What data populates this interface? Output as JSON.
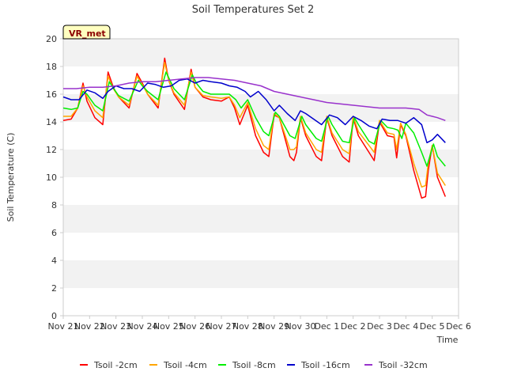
{
  "chart_data": {
    "type": "line",
    "title": "Soil Temperatures Set 2",
    "xlabel": "Time",
    "ylabel": "Soil Temperature (C)",
    "ylim": [
      0,
      20
    ],
    "yticks": [
      0,
      2,
      4,
      6,
      8,
      10,
      12,
      14,
      16,
      18,
      20
    ],
    "xlim": [
      0,
      15
    ],
    "xticks": [
      0,
      1,
      2,
      3,
      4,
      5,
      6,
      7,
      8,
      9,
      10,
      11,
      12,
      13,
      14,
      15
    ],
    "xtick_labels": [
      "Nov 21",
      "Nov 22",
      "Nov 23",
      "Nov 24",
      "Nov 25",
      "Nov 26",
      "Nov 27",
      "Nov 28",
      "Nov 29",
      "Nov 30",
      "Dec 1",
      "Dec 2",
      "Dec 3",
      "Dec 4",
      "Dec 5",
      "Dec 6"
    ],
    "station_badge": "VR_met",
    "legend_position": "bottom",
    "series": [
      {
        "name": "Tsoil -2cm",
        "color": "#ff0000",
        "x": [
          0,
          0.3,
          0.55,
          0.75,
          0.9,
          1.2,
          1.5,
          1.7,
          1.9,
          2.1,
          2.5,
          2.8,
          3.0,
          3.2,
          3.6,
          3.85,
          4.0,
          4.2,
          4.6,
          4.85,
          5.0,
          5.3,
          5.6,
          6.0,
          6.3,
          6.5,
          6.7,
          7.0,
          7.3,
          7.6,
          7.8,
          8.0,
          8.2,
          8.6,
          8.75,
          8.85,
          9.0,
          9.2,
          9.6,
          9.8,
          10.0,
          10.2,
          10.6,
          10.85,
          11.0,
          11.2,
          11.6,
          11.8,
          12.0,
          12.3,
          12.55,
          12.65,
          12.8,
          13.0,
          13.3,
          13.6,
          13.75,
          13.85,
          14.0,
          14.2,
          14.5
        ],
        "values": [
          14.1,
          14.2,
          15.0,
          16.8,
          15.5,
          14.3,
          13.8,
          17.6,
          16.5,
          15.8,
          15.0,
          17.5,
          16.8,
          16.0,
          15.0,
          18.6,
          17.0,
          16.0,
          14.9,
          17.8,
          16.5,
          15.8,
          15.6,
          15.5,
          15.8,
          15.0,
          13.8,
          15.2,
          13.0,
          11.8,
          11.5,
          14.5,
          14.3,
          11.5,
          11.2,
          11.8,
          14.3,
          13.0,
          11.5,
          11.2,
          14.3,
          13.0,
          11.5,
          11.1,
          14.3,
          13.0,
          11.8,
          11.2,
          14.0,
          13.0,
          12.9,
          11.4,
          13.8,
          13.0,
          10.5,
          8.5,
          8.6,
          10.5,
          12.3,
          10.0,
          8.6
        ]
      },
      {
        "name": "Tsoil -4cm",
        "color": "#ffa500",
        "x": [
          0,
          0.3,
          0.55,
          0.75,
          0.9,
          1.2,
          1.5,
          1.7,
          1.9,
          2.1,
          2.5,
          2.8,
          3.0,
          3.2,
          3.6,
          3.85,
          4.0,
          4.2,
          4.6,
          4.85,
          5.0,
          5.3,
          5.6,
          6.0,
          6.3,
          6.5,
          6.7,
          7.0,
          7.3,
          7.6,
          7.8,
          8.0,
          8.2,
          8.6,
          8.75,
          8.85,
          9.0,
          9.2,
          9.6,
          9.8,
          10.0,
          10.2,
          10.6,
          10.85,
          11.0,
          11.2,
          11.6,
          11.8,
          12.0,
          12.3,
          12.55,
          12.65,
          12.8,
          13.0,
          13.3,
          13.6,
          13.75,
          13.85,
          14.0,
          14.2,
          14.5
        ],
        "values": [
          14.4,
          14.4,
          15.0,
          16.6,
          15.8,
          14.8,
          14.3,
          17.3,
          16.4,
          15.8,
          15.2,
          17.3,
          16.7,
          16.0,
          15.2,
          18.3,
          17.0,
          16.1,
          15.2,
          17.6,
          16.5,
          15.9,
          15.8,
          15.7,
          15.8,
          15.2,
          14.3,
          15.4,
          13.5,
          12.3,
          12.0,
          14.6,
          14.3,
          12.0,
          12.0,
          12.2,
          14.4,
          13.2,
          12.0,
          11.8,
          14.4,
          13.2,
          12.0,
          11.7,
          14.4,
          13.3,
          12.3,
          11.8,
          14.1,
          13.2,
          13.1,
          12.0,
          13.9,
          13.1,
          11.0,
          9.3,
          9.4,
          11.0,
          12.3,
          10.3,
          9.4
        ]
      },
      {
        "name": "Tsoil -8cm",
        "color": "#00ee00",
        "x": [
          0,
          0.3,
          0.55,
          0.75,
          0.9,
          1.2,
          1.5,
          1.75,
          1.95,
          2.1,
          2.5,
          2.85,
          3.0,
          3.2,
          3.6,
          3.9,
          4.05,
          4.2,
          4.6,
          4.9,
          5.05,
          5.3,
          5.6,
          6.0,
          6.3,
          6.55,
          6.75,
          7.0,
          7.3,
          7.6,
          7.8,
          8.05,
          8.2,
          8.6,
          8.8,
          9.05,
          9.2,
          9.6,
          9.8,
          10.05,
          10.2,
          10.6,
          10.85,
          11.05,
          11.2,
          11.6,
          11.8,
          12.05,
          12.3,
          12.55,
          12.7,
          12.85,
          13.0,
          13.3,
          13.6,
          13.8,
          14.05,
          14.2,
          14.5
        ],
        "values": [
          15.0,
          14.9,
          15.0,
          16.2,
          16.0,
          15.2,
          14.8,
          16.9,
          16.3,
          15.9,
          15.5,
          17.0,
          16.6,
          16.2,
          15.6,
          17.6,
          17.0,
          16.4,
          15.6,
          17.4,
          16.8,
          16.2,
          16.0,
          16.0,
          16.0,
          15.6,
          15.0,
          15.6,
          14.3,
          13.3,
          13.0,
          14.7,
          14.4,
          13.0,
          12.8,
          14.4,
          13.8,
          12.8,
          12.6,
          14.4,
          13.8,
          12.6,
          12.5,
          14.3,
          13.8,
          12.6,
          12.4,
          14.1,
          13.6,
          13.5,
          13.4,
          12.8,
          13.9,
          13.2,
          11.8,
          10.8,
          12.4,
          11.5,
          10.8
        ]
      },
      {
        "name": "Tsoil -16cm",
        "color": "#0000cc",
        "x": [
          0,
          0.3,
          0.6,
          0.9,
          1.2,
          1.5,
          1.7,
          2.0,
          2.3,
          2.6,
          2.9,
          3.2,
          3.5,
          3.8,
          4.1,
          4.4,
          4.7,
          5.0,
          5.3,
          5.6,
          6.0,
          6.3,
          6.6,
          6.9,
          7.1,
          7.4,
          7.7,
          8.0,
          8.2,
          8.5,
          8.8,
          9.0,
          9.2,
          9.5,
          9.8,
          10.1,
          10.4,
          10.7,
          11.0,
          11.3,
          11.6,
          11.9,
          12.1,
          12.4,
          12.7,
          13.0,
          13.3,
          13.6,
          13.8,
          14.0,
          14.2,
          14.5
        ],
        "values": [
          15.8,
          15.6,
          15.6,
          16.3,
          16.1,
          15.7,
          16.2,
          16.6,
          16.4,
          16.4,
          16.2,
          16.8,
          16.7,
          16.5,
          16.6,
          17.0,
          17.1,
          16.8,
          17.0,
          16.9,
          16.8,
          16.6,
          16.5,
          16.2,
          15.8,
          16.2,
          15.6,
          14.8,
          15.2,
          14.6,
          14.1,
          14.8,
          14.6,
          14.2,
          13.8,
          14.5,
          14.3,
          13.8,
          14.4,
          14.1,
          13.7,
          13.5,
          14.2,
          14.1,
          14.1,
          13.9,
          14.3,
          13.8,
          12.5,
          12.7,
          13.1,
          12.5
        ]
      },
      {
        "name": "Tsoil -32cm",
        "color": "#9932cc",
        "x": [
          0,
          0.5,
          1.0,
          1.5,
          2.0,
          2.5,
          3.0,
          3.5,
          4.0,
          4.5,
          5.0,
          5.5,
          6.0,
          6.5,
          7.0,
          7.5,
          8.0,
          8.5,
          9.0,
          9.5,
          10.0,
          10.5,
          11.0,
          11.5,
          12.0,
          12.5,
          13.0,
          13.5,
          13.8,
          14.0,
          14.2,
          14.5
        ],
        "values": [
          16.4,
          16.4,
          16.5,
          16.5,
          16.6,
          16.8,
          16.9,
          16.9,
          17.0,
          17.1,
          17.2,
          17.2,
          17.1,
          17.0,
          16.8,
          16.6,
          16.2,
          16.0,
          15.8,
          15.6,
          15.4,
          15.3,
          15.2,
          15.1,
          15.0,
          15.0,
          15.0,
          14.9,
          14.5,
          14.4,
          14.3,
          14.1
        ]
      }
    ]
  }
}
